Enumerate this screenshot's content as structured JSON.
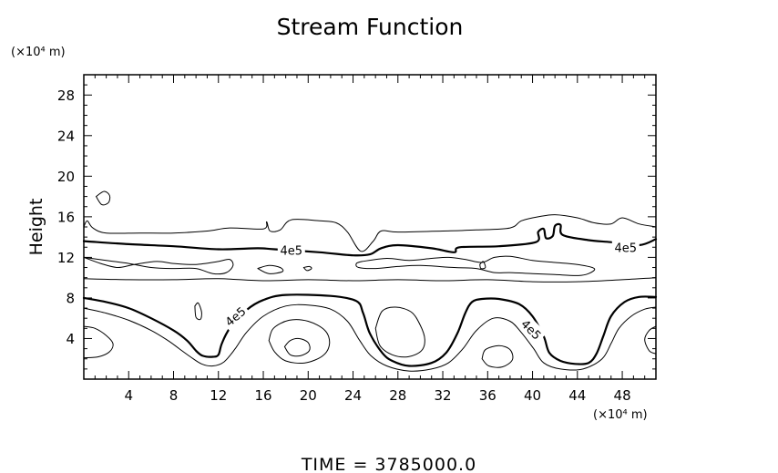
{
  "chart_data": {
    "type": "contour",
    "title": "Stream Function",
    "ylabel": "Height",
    "x_unit": "(×10⁴ m)",
    "y_unit": "(×10⁴ m)",
    "xlim": [
      0,
      51
    ],
    "ylim": [
      0,
      30
    ],
    "x_ticks": [
      4,
      8,
      12,
      16,
      20,
      24,
      28,
      32,
      36,
      40,
      44,
      48
    ],
    "y_ticks": [
      4,
      8,
      12,
      16,
      20,
      24,
      28
    ],
    "contour_labels": [
      {
        "text": "4e5",
        "x": 18.5,
        "y": 12.7,
        "angle": 0
      },
      {
        "text": "4e5",
        "x": 48.3,
        "y": 13.0,
        "angle": 0
      },
      {
        "text": "4e5",
        "x": 13.5,
        "y": 6.2,
        "angle": -40
      },
      {
        "text": "4e5",
        "x": 39.9,
        "y": 4.9,
        "angle": 45
      }
    ],
    "contours": [
      {
        "level": "4e5",
        "bold": true,
        "points": [
          [
            0,
            13.6
          ],
          [
            4,
            13.3
          ],
          [
            8,
            13.1
          ],
          [
            12,
            12.8
          ],
          [
            15.5,
            12.9
          ],
          [
            17,
            12.8
          ],
          [
            21,
            12.5
          ],
          [
            24,
            12.2
          ],
          [
            25.5,
            12.3
          ],
          [
            26.5,
            12.9
          ],
          [
            28,
            13.2
          ],
          [
            31,
            12.9
          ],
          [
            33,
            12.5
          ],
          [
            33.5,
            13.0
          ],
          [
            37,
            13.1
          ],
          [
            40.3,
            13.5
          ],
          [
            40.5,
            14.5
          ],
          [
            41,
            14.8
          ],
          [
            41.2,
            13.9
          ],
          [
            41.8,
            14.1
          ],
          [
            42,
            15.1
          ],
          [
            42.5,
            15.2
          ],
          [
            42.7,
            14.2
          ],
          [
            45,
            13.7
          ],
          [
            47,
            13.5
          ],
          [
            49.5,
            13.2
          ],
          [
            51,
            13.8
          ]
        ]
      },
      {
        "level": "4e5",
        "bold": true,
        "points": [
          [
            0,
            8.0
          ],
          [
            2,
            7.6
          ],
          [
            4,
            7.0
          ],
          [
            6,
            6.0
          ],
          [
            8,
            4.8
          ],
          [
            9.2,
            3.8
          ],
          [
            10,
            2.8
          ],
          [
            10.6,
            2.3
          ],
          [
            11.5,
            2.2
          ],
          [
            12,
            2.4
          ],
          [
            12.3,
            3.5
          ],
          [
            13,
            5.0
          ],
          [
            14.5,
            6.8
          ],
          [
            16,
            7.8
          ],
          [
            18,
            8.3
          ],
          [
            22,
            8.2
          ],
          [
            24.3,
            7.7
          ],
          [
            24.9,
            6.5
          ],
          [
            25.5,
            4.5
          ],
          [
            26.6,
            2.6
          ],
          [
            27.5,
            1.8
          ],
          [
            29,
            1.3
          ],
          [
            31,
            1.6
          ],
          [
            32.3,
            2.6
          ],
          [
            33.3,
            4.5
          ],
          [
            34,
            6.5
          ],
          [
            34.6,
            7.6
          ],
          [
            35.5,
            7.9
          ],
          [
            37,
            7.9
          ],
          [
            38.8,
            7.4
          ],
          [
            40,
            6.2
          ],
          [
            41,
            4.2
          ],
          [
            41.5,
            2.6
          ],
          [
            42.5,
            1.8
          ],
          [
            43.8,
            1.5
          ],
          [
            45,
            1.6
          ],
          [
            45.7,
            2.5
          ],
          [
            46.3,
            4.2
          ],
          [
            47,
            6.2
          ],
          [
            48.2,
            7.6
          ],
          [
            49.5,
            8.1
          ],
          [
            51,
            8.1
          ]
        ]
      },
      {
        "level": "",
        "bold": false,
        "points": [
          [
            0,
            15.0
          ],
          [
            0.3,
            15.6
          ],
          [
            0.8,
            14.9
          ],
          [
            2,
            14.4
          ],
          [
            5,
            14.4
          ],
          [
            8,
            14.4
          ],
          [
            11,
            14.6
          ],
          [
            13,
            14.9
          ],
          [
            16,
            14.8
          ],
          [
            16.3,
            15.5
          ],
          [
            16.6,
            14.6
          ],
          [
            17.5,
            14.7
          ],
          [
            18.5,
            15.7
          ],
          [
            21,
            15.6
          ],
          [
            22.5,
            15.4
          ],
          [
            23.5,
            14.5
          ],
          [
            24.7,
            12.6
          ],
          [
            25.8,
            13.6
          ],
          [
            26.5,
            14.6
          ],
          [
            28,
            14.5
          ],
          [
            32,
            14.6
          ],
          [
            35,
            14.7
          ],
          [
            38,
            14.9
          ],
          [
            39,
            15.6
          ],
          [
            40.5,
            16.0
          ],
          [
            42,
            16.2
          ],
          [
            44,
            15.9
          ],
          [
            45.5,
            15.4
          ],
          [
            47,
            15.3
          ],
          [
            48,
            15.9
          ],
          [
            49.5,
            15.3
          ],
          [
            51,
            15.0
          ]
        ]
      },
      {
        "level": "",
        "bold": false,
        "points": [
          [
            0,
            12.0
          ],
          [
            1.5,
            11.4
          ],
          [
            3,
            11.0
          ],
          [
            4.5,
            11.3
          ],
          [
            6.5,
            11.6
          ],
          [
            8,
            11.4
          ],
          [
            10,
            11.3
          ],
          [
            12,
            11.6
          ],
          [
            13,
            11.8
          ],
          [
            13.3,
            11.2
          ],
          [
            12.7,
            10.5
          ],
          [
            11.5,
            10.4
          ],
          [
            10,
            10.9
          ],
          [
            8,
            10.9
          ],
          [
            6,
            11.0
          ],
          [
            4,
            11.4
          ],
          [
            2,
            11.7
          ],
          [
            0,
            12.0
          ]
        ]
      },
      {
        "level": "",
        "bold": false,
        "points": [
          [
            24.8,
            11.6
          ],
          [
            27,
            11.9
          ],
          [
            29,
            11.7
          ],
          [
            31,
            11.9
          ],
          [
            32.5,
            12.0
          ],
          [
            34,
            11.8
          ],
          [
            35.5,
            11.5
          ],
          [
            36.6,
            12.0
          ],
          [
            38,
            12.1
          ],
          [
            40,
            11.7
          ],
          [
            42,
            11.5
          ],
          [
            44,
            11.3
          ],
          [
            45.5,
            10.9
          ],
          [
            45,
            10.4
          ],
          [
            44,
            10.2
          ],
          [
            42,
            10.3
          ],
          [
            40,
            10.4
          ],
          [
            38,
            10.5
          ],
          [
            36.6,
            10.5
          ],
          [
            35,
            10.9
          ],
          [
            33,
            11.0
          ],
          [
            30,
            11.2
          ],
          [
            28,
            11.1
          ],
          [
            26,
            10.9
          ],
          [
            24.5,
            11.0
          ],
          [
            24.3,
            11.4
          ],
          [
            24.8,
            11.6
          ]
        ]
      },
      {
        "level": "",
        "bold": false,
        "points": [
          [
            0,
            9.9
          ],
          [
            4,
            9.8
          ],
          [
            8,
            9.8
          ],
          [
            12,
            9.9
          ],
          [
            16,
            9.7
          ],
          [
            20,
            9.8
          ],
          [
            24,
            9.7
          ],
          [
            28,
            9.8
          ],
          [
            32,
            9.7
          ],
          [
            36,
            9.8
          ],
          [
            40,
            9.6
          ],
          [
            44,
            9.6
          ],
          [
            48,
            9.8
          ],
          [
            51,
            10.0
          ]
        ]
      },
      {
        "level": "",
        "bold": false,
        "points": [
          [
            0,
            7.0
          ],
          [
            2,
            6.5
          ],
          [
            4,
            5.8
          ],
          [
            6,
            4.8
          ],
          [
            7.5,
            3.8
          ],
          [
            8.5,
            3.0
          ],
          [
            9.5,
            2.2
          ],
          [
            10.5,
            1.5
          ],
          [
            11.5,
            1.3
          ],
          [
            12.5,
            1.7
          ],
          [
            13.5,
            3.0
          ],
          [
            14.5,
            4.6
          ],
          [
            16,
            6.2
          ],
          [
            18,
            7.2
          ],
          [
            20,
            7.3
          ],
          [
            22,
            6.9
          ],
          [
            23.5,
            5.7
          ],
          [
            24.6,
            3.8
          ],
          [
            25.6,
            2.3
          ],
          [
            27,
            1.3
          ],
          [
            29,
            0.8
          ],
          [
            31,
            1.0
          ],
          [
            32.5,
            1.6
          ],
          [
            33.8,
            3.0
          ],
          [
            35,
            4.8
          ],
          [
            36.5,
            6.0
          ],
          [
            38,
            5.7
          ],
          [
            39,
            4.6
          ],
          [
            40.1,
            3.0
          ],
          [
            41,
            1.6
          ],
          [
            42.5,
            1.0
          ],
          [
            44.5,
            1.0
          ],
          [
            46.2,
            2.0
          ],
          [
            47,
            3.5
          ],
          [
            47.7,
            5.0
          ],
          [
            48.8,
            6.2
          ],
          [
            50,
            6.9
          ],
          [
            51,
            7.1
          ]
        ]
      },
      {
        "level": "",
        "bold": false,
        "points": [
          [
            0,
            5.2
          ],
          [
            1,
            5.0
          ],
          [
            2,
            4.3
          ],
          [
            2.6,
            3.5
          ],
          [
            2.3,
            2.7
          ],
          [
            1.3,
            2.2
          ],
          [
            0,
            2.1
          ]
        ]
      },
      {
        "level": "",
        "bold": false,
        "points": [
          [
            51,
            5.2
          ],
          [
            50.4,
            4.8
          ],
          [
            50,
            3.9
          ],
          [
            50.4,
            2.8
          ],
          [
            51,
            2.5
          ]
        ]
      },
      {
        "level": "",
        "bold": false,
        "points": [
          [
            16.5,
            3.8
          ],
          [
            16.9,
            5.0
          ],
          [
            18.3,
            5.8
          ],
          [
            20,
            5.7
          ],
          [
            21.5,
            4.8
          ],
          [
            21.9,
            3.5
          ],
          [
            21.3,
            2.3
          ],
          [
            19.7,
            1.6
          ],
          [
            18,
            1.8
          ],
          [
            17,
            2.7
          ],
          [
            16.5,
            3.8
          ]
        ]
      },
      {
        "level": "",
        "bold": false,
        "points": [
          [
            17.9,
            3.2
          ],
          [
            18.4,
            3.8
          ],
          [
            19.2,
            4.0
          ],
          [
            20.0,
            3.6
          ],
          [
            20.1,
            2.8
          ],
          [
            19.3,
            2.3
          ],
          [
            18.4,
            2.4
          ],
          [
            17.9,
            3.2
          ]
        ]
      },
      {
        "level": "",
        "bold": false,
        "points": [
          [
            26,
            5.0
          ],
          [
            26.6,
            6.7
          ],
          [
            27.8,
            7.1
          ],
          [
            29.2,
            6.6
          ],
          [
            30,
            5.3
          ],
          [
            30.4,
            3.9
          ],
          [
            30.1,
            2.8
          ],
          [
            28.9,
            2.2
          ],
          [
            27.5,
            2.4
          ],
          [
            26.4,
            3.3
          ],
          [
            26,
            5.0
          ]
        ]
      },
      {
        "level": "",
        "bold": false,
        "points": [
          [
            35.5,
            2.0
          ],
          [
            35.8,
            2.9
          ],
          [
            37,
            3.3
          ],
          [
            38,
            2.9
          ],
          [
            38.2,
            1.9
          ],
          [
            37.3,
            1.2
          ],
          [
            36.1,
            1.3
          ],
          [
            35.5,
            2.0
          ]
        ]
      },
      {
        "level": "",
        "bold": false,
        "points": [
          [
            1.1,
            18.0
          ],
          [
            1.8,
            18.5
          ],
          [
            2.3,
            18.1
          ],
          [
            2.2,
            17.4
          ],
          [
            1.6,
            17.2
          ],
          [
            1.1,
            18.0
          ]
        ]
      },
      {
        "level": "",
        "bold": false,
        "points": [
          [
            15.5,
            10.9
          ],
          [
            16.5,
            11.2
          ],
          [
            17.5,
            11.0
          ],
          [
            17.7,
            10.6
          ],
          [
            16.5,
            10.4
          ],
          [
            15.5,
            10.9
          ]
        ]
      },
      {
        "level": "",
        "bold": false,
        "points": [
          [
            19.6,
            11.0
          ],
          [
            20.1,
            11.1
          ],
          [
            20.3,
            10.9
          ],
          [
            19.9,
            10.7
          ],
          [
            19.6,
            11.0
          ]
        ]
      },
      {
        "level": "",
        "bold": false,
        "points": [
          [
            9.9,
            7.2
          ],
          [
            10.2,
            7.5
          ],
          [
            10.5,
            6.6
          ],
          [
            10.4,
            5.9
          ],
          [
            10.0,
            6.1
          ],
          [
            9.9,
            7.2
          ]
        ]
      },
      {
        "level": "",
        "bold": false,
        "points": [
          [
            35.3,
            11.3
          ],
          [
            35.6,
            11.6
          ],
          [
            35.8,
            11.0
          ],
          [
            35.4,
            10.9
          ],
          [
            35.3,
            11.3
          ]
        ]
      }
    ]
  },
  "footer": {
    "time_text": "TIME  =  3785000.0"
  }
}
